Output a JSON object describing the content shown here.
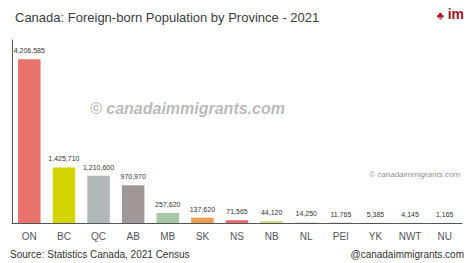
{
  "chart_data": {
    "type": "bar",
    "title": "Canada: Foreign-born Population by Province - 2021",
    "categories": [
      "ON",
      "BC",
      "QC",
      "AB",
      "MB",
      "SK",
      "NS",
      "NB",
      "NL",
      "PEI",
      "YK",
      "NWT",
      "NU"
    ],
    "values": [
      4206585,
      1425710,
      1210600,
      970970,
      257620,
      137620,
      71565,
      44120,
      14250,
      11765,
      5385,
      4145,
      1165
    ],
    "value_labels": [
      "4,206,585",
      "1,425,710",
      "1,210,600",
      "970,970",
      "257,620",
      "137,620",
      "71,565",
      "44,120",
      "14,250",
      "11,765",
      "5,385",
      "4,145",
      "1,165"
    ],
    "colors": [
      "#e8736a",
      "#d4d400",
      "#b0b8b8",
      "#a09898",
      "#a8c8a8",
      "#e8a050",
      "#e86868",
      "#c8d870",
      "#c8c8c8",
      "#c8c8c8",
      "#c8c8c8",
      "#c8c8c8",
      "#c8c8c8"
    ],
    "ylim": [
      0,
      4700000
    ],
    "yticks": [],
    "tick_labels": "x",
    "grid": false,
    "data_labels": true,
    "annotations": [
      "Source: Statistics Canada, 2021 Census",
      "@canadaimmigrants.com",
      "© canadaimmigrants.com",
      "© canadaimmigrants.com",
      "im",
      "♣"
    ]
  }
}
